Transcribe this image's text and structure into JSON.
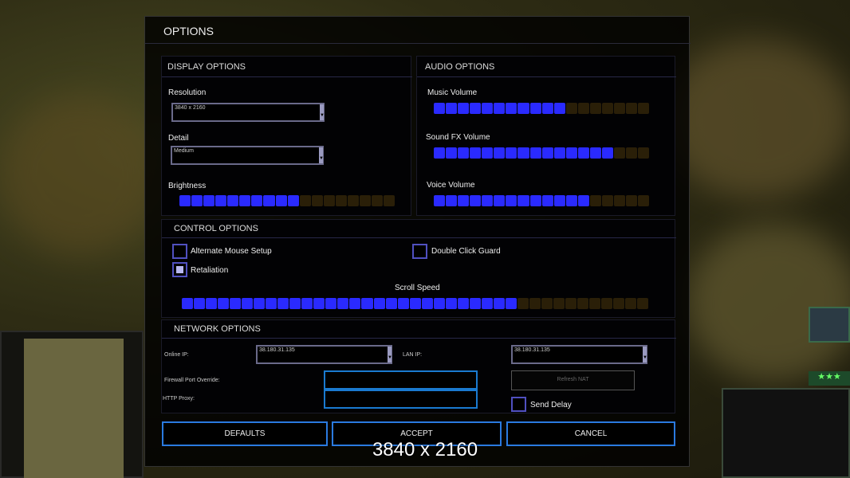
{
  "dialog_title": "OPTIONS",
  "display": {
    "title": "DISPLAY OPTIONS",
    "resolution_label": "Resolution",
    "resolution_value": "3840 x 2160",
    "detail_label": "Detail",
    "detail_value": "Medium",
    "brightness_label": "Brightness",
    "brightness": {
      "filled": 10,
      "total": 18
    }
  },
  "audio": {
    "title": "AUDIO OPTIONS",
    "music_label": "Music Volume",
    "music": {
      "filled": 11,
      "total": 18
    },
    "sfx_label": "Sound FX Volume",
    "sfx": {
      "filled": 15,
      "total": 18
    },
    "voice_label": "Voice Volume",
    "voice": {
      "filled": 13,
      "total": 18
    }
  },
  "control": {
    "title": "CONTROL OPTIONS",
    "alt_mouse_label": "Alternate Mouse Setup",
    "alt_mouse_checked": false,
    "double_click_label": "Double Click Guard",
    "double_click_checked": false,
    "retaliation_label": "Retaliation",
    "retaliation_checked": true,
    "scroll_label": "Scroll Speed",
    "scroll": {
      "filled": 28,
      "total": 39
    }
  },
  "network": {
    "title": "NETWORK OPTIONS",
    "online_ip_label": "Online IP:",
    "online_ip_value": "38.180.31.135",
    "lan_ip_label": "LAN IP:",
    "lan_ip_value": "38.180.31.135",
    "firewall_label": "Firewall Port Override:",
    "firewall_value": "",
    "proxy_label": "HTTP Proxy:",
    "proxy_value": "",
    "refresh_nat_label": "Refresh NAT",
    "send_delay_label": "Send Delay",
    "send_delay_checked": false
  },
  "buttons": {
    "defaults": "DEFAULTS",
    "accept": "ACCEPT",
    "cancel": "CANCEL"
  },
  "caption": "3840 x 2160",
  "colors": {
    "accent": "#2a2aff",
    "button_border": "#2a7ae0",
    "bar_empty": "#2a1f08"
  }
}
